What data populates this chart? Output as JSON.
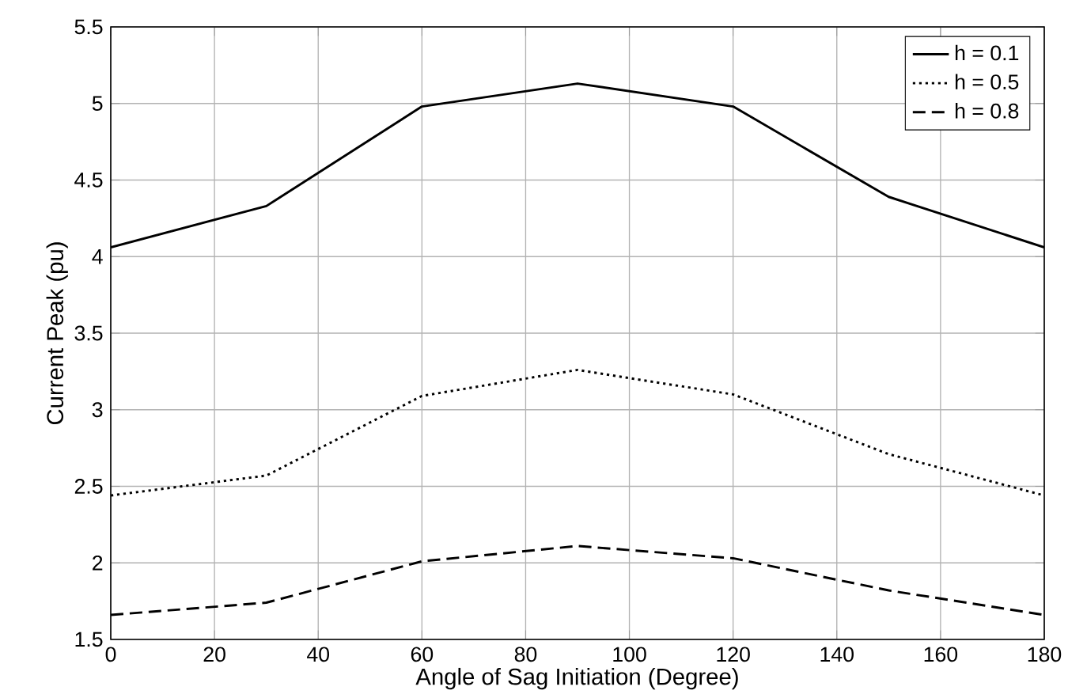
{
  "chart_data": {
    "type": "line",
    "xlabel": "Angle of Sag Initiation (Degree)",
    "ylabel": "Current Peak (pu)",
    "x": [
      0,
      30,
      60,
      90,
      120,
      150,
      180
    ],
    "series": [
      {
        "name": "h = 0.1",
        "color": "#000000",
        "line_style": "solid",
        "values": [
          4.06,
          4.33,
          4.98,
          5.13,
          4.98,
          4.39,
          4.06
        ]
      },
      {
        "name": "h = 0.5",
        "color": "#000000",
        "line_style": "dotted",
        "values": [
          2.44,
          2.57,
          3.09,
          3.26,
          3.1,
          2.71,
          2.44
        ]
      },
      {
        "name": "h = 0.8",
        "color": "#000000",
        "line_style": "dashed",
        "values": [
          1.66,
          1.74,
          2.01,
          2.11,
          2.03,
          1.82,
          1.66
        ]
      }
    ],
    "xlim": [
      0,
      180
    ],
    "xticks": [
      0,
      20,
      40,
      60,
      80,
      100,
      120,
      140,
      160,
      180
    ],
    "ylim": [
      1.5,
      5.5
    ],
    "yticks": [
      1.5,
      2,
      2.5,
      3,
      3.5,
      4,
      4.5,
      5,
      5.5
    ],
    "grid": true,
    "legend": "top right"
  }
}
